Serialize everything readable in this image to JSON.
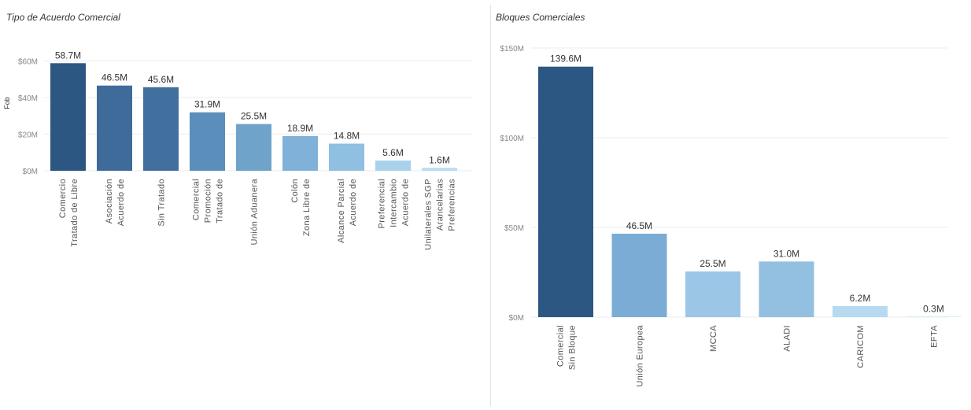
{
  "charts": {
    "left_title": "Tipo de Acuerdo Comercial",
    "right_title": "Bloques Comerciales"
  },
  "chart_data": [
    {
      "type": "bar",
      "title": "Tipo de Acuerdo Comercial",
      "xlabel": "",
      "ylabel": "Fob",
      "ylim": [
        0,
        70
      ],
      "yticks": [
        "$0M",
        "$20M",
        "$40M",
        "$60M"
      ],
      "grid": true,
      "categories": [
        [
          "Tratado de Libre",
          "Comercio"
        ],
        [
          "Acuerdo de",
          "Asociación"
        ],
        [
          "Sin Tratado"
        ],
        [
          "Tratado de",
          "Promoción",
          "Comercial"
        ],
        [
          "Unión Aduanera"
        ],
        [
          "Zona Libre de",
          "Colón"
        ],
        [
          "Acuerdo de",
          "Alcance Parcial"
        ],
        [
          "Acuerdo de",
          "Intercambio",
          "Preferencial"
        ],
        [
          "Preferencias",
          "Arancelarias",
          "Unilaterales SGP"
        ]
      ],
      "values": [
        58.7,
        46.5,
        45.6,
        31.9,
        25.5,
        18.9,
        14.8,
        5.6,
        1.6
      ],
      "labels": [
        "58.7M",
        "46.5M",
        "45.6M",
        "31.9M",
        "25.5M",
        "18.9M",
        "14.8M",
        "5.6M",
        "1.6M"
      ],
      "colors": [
        "#2c5783",
        "#3f6b9a",
        "#41709f",
        "#5b8eba",
        "#6fa3c9",
        "#7fb1d9",
        "#8fbfe1",
        "#a9d1ec",
        "#b9dcf2"
      ]
    },
    {
      "type": "bar",
      "title": "Bloques Comerciales",
      "xlabel": "",
      "ylabel": "",
      "ylim": [
        0,
        150
      ],
      "yticks": [
        "$0M",
        "$50M",
        "$100M",
        "$150M"
      ],
      "grid": true,
      "categories": [
        [
          "Sin Bloque",
          "Comercial"
        ],
        [
          "Unión Europea"
        ],
        [
          "MCCA"
        ],
        [
          "ALADI"
        ],
        [
          "CARICOM"
        ],
        [
          "EFTA"
        ]
      ],
      "values": [
        139.6,
        46.5,
        25.5,
        31.0,
        6.2,
        0.3
      ],
      "labels": [
        "139.6M",
        "46.5M",
        "25.5M",
        "31.0M",
        "6.2M",
        "0.3M"
      ],
      "colors": [
        "#2c5783",
        "#7aacd5",
        "#9cc6e6",
        "#93bfe1",
        "#b7daf1",
        "#c9e3f5"
      ]
    }
  ]
}
